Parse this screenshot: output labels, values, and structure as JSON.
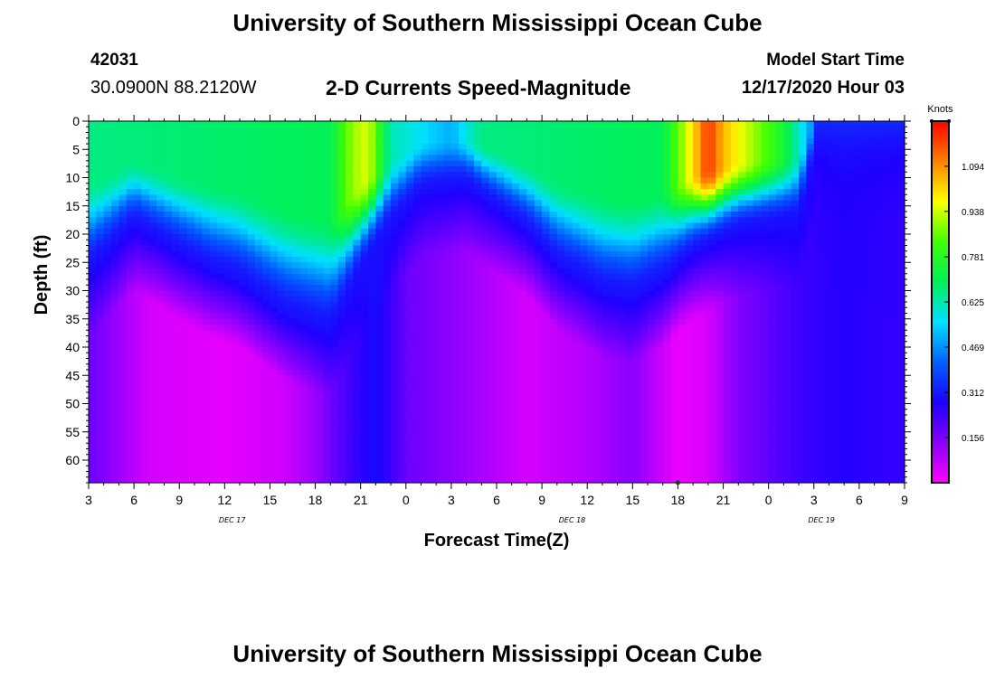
{
  "header": {
    "title": "University of Southern Mississippi Ocean Cube",
    "station_id": "42031",
    "station_coords": "30.0900N 88.2120W",
    "subtitle": "2-D Currents Speed-Magnitude",
    "model_label": "Model Start Time",
    "model_time": "12/17/2020 Hour 03"
  },
  "footer": {
    "title": "University of Southern Mississippi Ocean Cube"
  },
  "chart_data": {
    "type": "heatmap",
    "title": "2-D Currents Speed-Magnitude",
    "xlabel": "Forecast Time(Z)",
    "ylabel": "Depth (ft)",
    "x_ticks": [
      "3",
      "6",
      "9",
      "12",
      "15",
      "18",
      "21",
      "0",
      "3",
      "6",
      "9",
      "12",
      "15",
      "18",
      "21",
      "0",
      "3",
      "6",
      "9"
    ],
    "x_range_hours": [
      0,
      54
    ],
    "date_labels": [
      {
        "text": "DEC 17",
        "hour": 9.5
      },
      {
        "text": "DEC 18",
        "hour": 32
      },
      {
        "text": "DEC 19",
        "hour": 48.5
      }
    ],
    "y_ticks": [
      "0",
      "5",
      "10",
      "15",
      "20",
      "25",
      "30",
      "35",
      "40",
      "45",
      "50",
      "55",
      "60"
    ],
    "y_range_ft": [
      0,
      64
    ],
    "colorbar": {
      "unit": "Knots",
      "range": [
        0,
        1.25
      ],
      "labels": [
        "1.094",
        "0.938",
        "0.781",
        "0.625",
        "0.469",
        "0.312",
        "0.156"
      ],
      "colors": [
        "#ff00ff",
        "#8a00ff",
        "#1e00ff",
        "#0060ff",
        "#00e0ff",
        "#00f05a",
        "#40ff00",
        "#ffff00",
        "#ff8000",
        "#ff0000"
      ]
    },
    "surface_layer_depth_ft": [
      {
        "hour": 0,
        "depth": 20
      },
      {
        "hour": 3,
        "depth": 12
      },
      {
        "hour": 6,
        "depth": 17
      },
      {
        "hour": 8,
        "depth": 20
      },
      {
        "hour": 10,
        "depth": 22
      },
      {
        "hour": 13,
        "depth": 28
      },
      {
        "hour": 16,
        "depth": 31
      },
      {
        "hour": 18,
        "depth": 20
      },
      {
        "hour": 20,
        "depth": 12
      },
      {
        "hour": 22,
        "depth": 6
      },
      {
        "hour": 25,
        "depth": 5
      },
      {
        "hour": 27,
        "depth": 9
      },
      {
        "hour": 29,
        "depth": 13
      },
      {
        "hour": 31,
        "depth": 19
      },
      {
        "hour": 34,
        "depth": 24
      },
      {
        "hour": 36,
        "depth": 25
      },
      {
        "hour": 38,
        "depth": 22
      },
      {
        "hour": 40,
        "depth": 17
      },
      {
        "hour": 43,
        "depth": 13
      },
      {
        "hour": 47,
        "depth": 11
      },
      {
        "hour": 48,
        "depth": 0
      }
    ],
    "surface_speed_knots": [
      {
        "hour": 0,
        "value": 0.66
      },
      {
        "hour": 16,
        "value": 0.7
      },
      {
        "hour": 17.5,
        "value": 0.9
      },
      {
        "hour": 18.5,
        "value": 0.95
      },
      {
        "hour": 20,
        "value": 0.62
      },
      {
        "hour": 24,
        "value": 0.5
      },
      {
        "hour": 26,
        "value": 0.66
      },
      {
        "hour": 38,
        "value": 0.7
      },
      {
        "hour": 40,
        "value": 1.0
      },
      {
        "hour": 41,
        "value": 1.2
      },
      {
        "hour": 42,
        "value": 1.05
      },
      {
        "hour": 46,
        "value": 0.75
      },
      {
        "hour": 48,
        "value": 0.45
      },
      {
        "hour": 50,
        "value": 0.35
      },
      {
        "hour": 54,
        "value": 0.3
      }
    ],
    "deep_speed_knots": [
      {
        "hour": 0,
        "value": 0.18
      },
      {
        "hour": 4,
        "value": 0.05
      },
      {
        "hour": 9,
        "value": 0.03
      },
      {
        "hour": 13,
        "value": 0.06
      },
      {
        "hour": 15,
        "value": 0.12
      },
      {
        "hour": 17,
        "value": 0.22
      },
      {
        "hour": 19,
        "value": 0.3
      },
      {
        "hour": 21,
        "value": 0.18
      },
      {
        "hour": 25,
        "value": 0.12
      },
      {
        "hour": 29,
        "value": 0.05
      },
      {
        "hour": 33,
        "value": 0.09
      },
      {
        "hour": 36,
        "value": 0.14
      },
      {
        "hour": 39,
        "value": 0.02
      },
      {
        "hour": 41,
        "value": 0.05
      },
      {
        "hour": 43,
        "value": 0.15
      },
      {
        "hour": 47,
        "value": 0.24
      },
      {
        "hour": 50,
        "value": 0.27
      },
      {
        "hour": 54,
        "value": 0.25
      }
    ]
  }
}
